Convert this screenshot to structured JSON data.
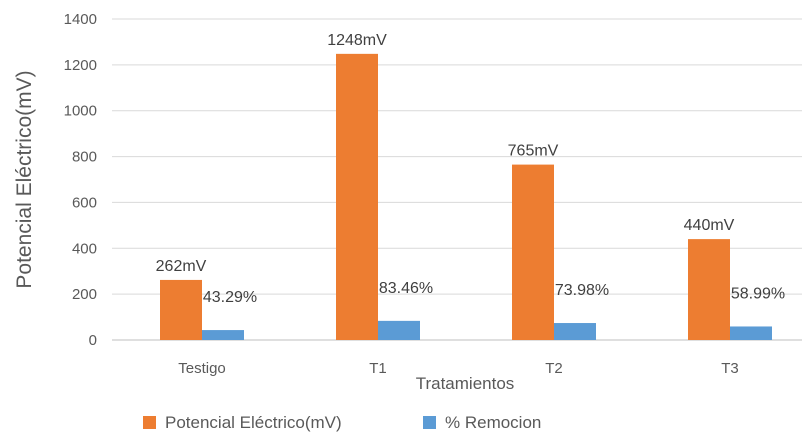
{
  "chart_data": {
    "type": "bar",
    "title": "",
    "xlabel": "Tratamientos",
    "ylabel": "Potencial Eléctrico(mV)",
    "categories": [
      "Testigo",
      "T1",
      "T2",
      "T3"
    ],
    "ylim": [
      0,
      1400
    ],
    "yticks": [
      0,
      200,
      400,
      600,
      800,
      1000,
      1200,
      1400
    ],
    "grid": true,
    "legend_position": "bottom",
    "series": [
      {
        "name": "Potencial Eléctrico(mV)",
        "color": "#ED7D31",
        "values": [
          262,
          1248,
          765,
          440
        ],
        "labels": [
          "262mV",
          "1248mV",
          "765mV",
          "440mV"
        ]
      },
      {
        "name": "% Remocion",
        "color": "#5B9BD5",
        "values": [
          43.29,
          83.46,
          73.98,
          58.99
        ],
        "labels": [
          "43.29%",
          "83.46%",
          "73.98%",
          "58.99%"
        ]
      }
    ]
  }
}
